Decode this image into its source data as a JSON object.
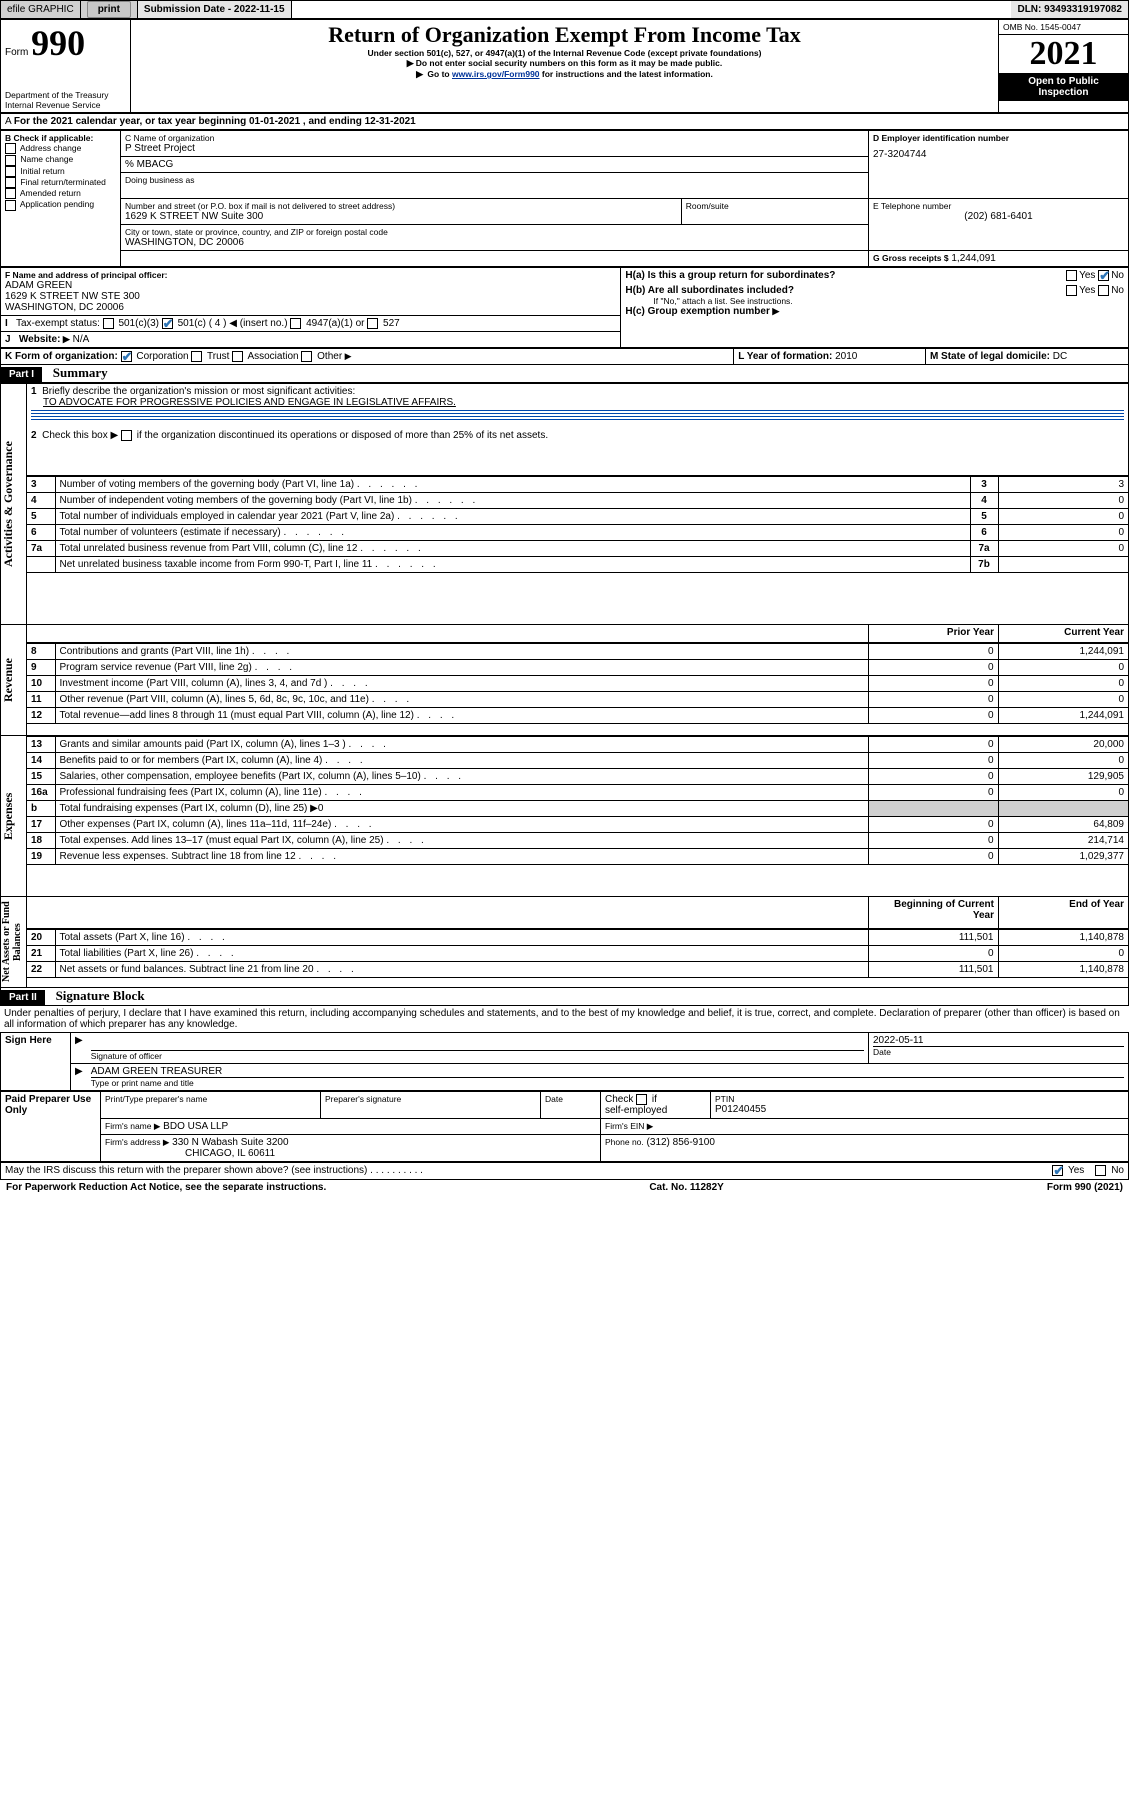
{
  "topbar": {
    "efile": "efile GRAPHIC",
    "print": "print",
    "submission": "Submission Date - 2022-11-15",
    "dln": "DLN: 93493319197082"
  },
  "header": {
    "form_prefix": "Form",
    "form_number": "990",
    "title": "Return of Organization Exempt From Income Tax",
    "subtitle": "Under section 501(c), 527, or 4947(a)(1) of the Internal Revenue Code (except private foundations)",
    "note1": "Do not enter social security numbers on this form as it may be made public.",
    "note2_pre": "Go to ",
    "note2_link": "www.irs.gov/Form990",
    "note2_post": " for instructions and the latest information.",
    "dept": "Department of the Treasury",
    "irs": "Internal Revenue Service",
    "omb_label": "OMB No. 1545-0047",
    "year": "2021",
    "inspection": "Open to Public Inspection"
  },
  "lineA": "For the 2021 calendar year, or tax year beginning 01-01-2021   , and ending 12-31-2021",
  "boxB": {
    "title": "B Check if applicable:",
    "items": [
      "Address change",
      "Name change",
      "Initial return",
      "Final return/terminated",
      "Amended return",
      "Application pending"
    ]
  },
  "boxC": {
    "label": "C Name of organization",
    "name": "P Street Project",
    "care_of": "% MBACG",
    "dba_label": "Doing business as",
    "addr_label": "Number and street (or P.O. box if mail is not delivered to street address)",
    "room_label": "Room/suite",
    "street": "1629 K STREET NW Suite 300",
    "city_label": "City or town, state or province, country, and ZIP or foreign postal code",
    "city": "WASHINGTON, DC  20006"
  },
  "boxD": {
    "label": "D Employer identification number",
    "value": "27-3204744"
  },
  "boxE": {
    "label": "E Telephone number",
    "value": "(202) 681-6401"
  },
  "boxG": {
    "label": "G Gross receipts $",
    "value": "1,244,091"
  },
  "boxF": {
    "label": "F Name and address of principal officer:",
    "name": "ADAM GREEN",
    "addr1": "1629 K STREET NW STE 300",
    "addr2": "WASHINGTON, DC  20006"
  },
  "boxH": {
    "a": "H(a)  Is this a group return for subordinates?",
    "b": "H(b)  Are all subordinates included?",
    "b_note": "If \"No,\" attach a list. See instructions.",
    "c": "H(c)  Group exemption number",
    "yes": "Yes",
    "no": "No"
  },
  "lineI": {
    "label": "Tax-exempt status:",
    "opts": [
      "501(c)(3)",
      "501(c) ( 4 )",
      "(insert no.)",
      "4947(a)(1) or",
      "527"
    ],
    "insert_marker": "◀"
  },
  "lineJ": {
    "label": "Website:",
    "value": "N/A"
  },
  "lineK": {
    "label": "K Form of organization:",
    "opts": [
      "Corporation",
      "Trust",
      "Association",
      "Other"
    ]
  },
  "lineL": {
    "label": "L Year of formation:",
    "value": "2010"
  },
  "lineM": {
    "label": "M State of legal domicile:",
    "value": "DC"
  },
  "partI": {
    "header": "Part I",
    "title": "Summary",
    "q1_label": "1",
    "q1_text": "Briefly describe the organization's mission or most significant activities:",
    "q1_value": "TO ADVOCATE FOR PROGRESSIVE POLICIES AND ENGAGE IN LEGISLATIVE AFFAIRS.",
    "q2_label": "2",
    "q2_text": "Check this box ▶       if the organization discontinued its operations or disposed of more than 25% of its net assets.",
    "rows_gov": [
      {
        "n": "3",
        "t": "Number of voting members of the governing body (Part VI, line 1a)",
        "c": "3",
        "v": "3"
      },
      {
        "n": "4",
        "t": "Number of independent voting members of the governing body (Part VI, line 1b)",
        "c": "4",
        "v": "0"
      },
      {
        "n": "5",
        "t": "Total number of individuals employed in calendar year 2021 (Part V, line 2a)",
        "c": "5",
        "v": "0"
      },
      {
        "n": "6",
        "t": "Total number of volunteers (estimate if necessary)",
        "c": "6",
        "v": "0"
      },
      {
        "n": "7a",
        "t": "Total unrelated business revenue from Part VIII, column (C), line 12",
        "c": "7a",
        "v": "0"
      },
      {
        "n": "",
        "t": "Net unrelated business taxable income from Form 990-T, Part I, line 11",
        "c": "7b",
        "v": ""
      }
    ],
    "col_prior": "Prior Year",
    "col_current": "Current Year",
    "rows_rev": [
      {
        "n": "8",
        "t": "Contributions and grants (Part VIII, line 1h)",
        "p": "0",
        "c": "1,244,091"
      },
      {
        "n": "9",
        "t": "Program service revenue (Part VIII, line 2g)",
        "p": "0",
        "c": "0"
      },
      {
        "n": "10",
        "t": "Investment income (Part VIII, column (A), lines 3, 4, and 7d )",
        "p": "0",
        "c": "0"
      },
      {
        "n": "11",
        "t": "Other revenue (Part VIII, column (A), lines 5, 6d, 8c, 9c, 10c, and 11e)",
        "p": "0",
        "c": "0"
      },
      {
        "n": "12",
        "t": "Total revenue—add lines 8 through 11 (must equal Part VIII, column (A), line 12)",
        "p": "0",
        "c": "1,244,091"
      }
    ],
    "rows_exp": [
      {
        "n": "13",
        "t": "Grants and similar amounts paid (Part IX, column (A), lines 1–3 )",
        "p": "0",
        "c": "20,000"
      },
      {
        "n": "14",
        "t": "Benefits paid to or for members (Part IX, column (A), line 4)",
        "p": "0",
        "c": "0"
      },
      {
        "n": "15",
        "t": "Salaries, other compensation, employee benefits (Part IX, column (A), lines 5–10)",
        "p": "0",
        "c": "129,905"
      },
      {
        "n": "16a",
        "t": "Professional fundraising fees (Part IX, column (A), line 11e)",
        "p": "0",
        "c": "0"
      },
      {
        "n": "b",
        "t": "Total fundraising expenses (Part IX, column (D), line 25) ▶0",
        "p": "",
        "c": "",
        "shade": true,
        "noshade_p": false
      },
      {
        "n": "17",
        "t": "Other expenses (Part IX, column (A), lines 11a–11d, 11f–24e)",
        "p": "0",
        "c": "64,809"
      },
      {
        "n": "18",
        "t": "Total expenses. Add lines 13–17 (must equal Part IX, column (A), line 25)",
        "p": "0",
        "c": "214,714"
      },
      {
        "n": "19",
        "t": "Revenue less expenses. Subtract line 18 from line 12",
        "p": "0",
        "c": "1,029,377"
      }
    ],
    "col_begin": "Beginning of Current Year",
    "col_end": "End of Year",
    "rows_net": [
      {
        "n": "20",
        "t": "Total assets (Part X, line 16)",
        "p": "111,501",
        "c": "1,140,878"
      },
      {
        "n": "21",
        "t": "Total liabilities (Part X, line 26)",
        "p": "0",
        "c": "0"
      },
      {
        "n": "22",
        "t": "Net assets or fund balances. Subtract line 21 from line 20",
        "p": "111,501",
        "c": "1,140,878"
      }
    ],
    "side_gov": "Activities & Governance",
    "side_rev": "Revenue",
    "side_exp": "Expenses",
    "side_net": "Net Assets or Fund Balances"
  },
  "partII": {
    "header": "Part II",
    "title": "Signature Block",
    "declaration": "Under penalties of perjury, I declare that I have examined this return, including accompanying schedules and statements, and to the best of my knowledge and belief, it is true, correct, and complete. Declaration of preparer (other than officer) is based on all information of which preparer has any knowledge.",
    "sign_here": "Sign Here",
    "sig_officer": "Signature of officer",
    "sig_date": "Date",
    "sig_date_val": "2022-05-11",
    "name_title": "ADAM GREEN  TREASURER",
    "name_title_label": "Type or print name and title",
    "paid": "Paid Preparer Use Only",
    "prep_name_label": "Print/Type preparer's name",
    "prep_sig_label": "Preparer's signature",
    "prep_date_label": "Date",
    "check_self": "Check        if self-employed",
    "ptin_label": "PTIN",
    "ptin": "P01240455",
    "firm_name_label": "Firm's name    ▶",
    "firm_name": "BDO USA LLP",
    "firm_ein_label": "Firm's EIN ▶",
    "firm_addr_label": "Firm's address ▶",
    "firm_addr": "330 N Wabash Suite 3200",
    "firm_city": "CHICAGO, IL  60611",
    "phone_label": "Phone no.",
    "phone": "(312) 856-9100",
    "may_irs": "May the IRS discuss this return with the preparer shown above? (see instructions)",
    "yes": "Yes",
    "no": "No"
  },
  "footer": {
    "paperwork": "For Paperwork Reduction Act Notice, see the separate instructions.",
    "cat": "Cat. No. 11282Y",
    "form": "Form 990 (2021)"
  }
}
